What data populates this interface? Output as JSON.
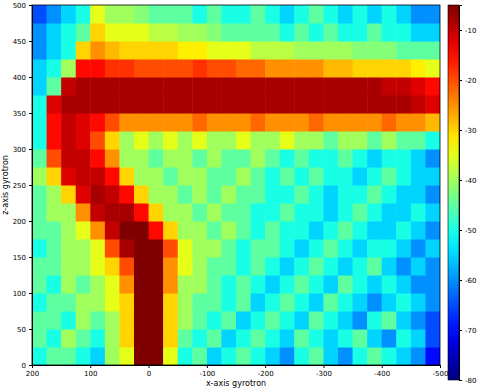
{
  "chart_data": {
    "type": "heatmap",
    "x_label": "x-axis gyrotron",
    "y_label": "z-axis gyrotron",
    "x": [
      187.5,
      162.5,
      137.5,
      112.5,
      87.5,
      62.5,
      37.5,
      12.5,
      -12.5,
      -37.5,
      -62.5,
      -87.5,
      -112.5,
      -137.5,
      -162.5,
      -187.5,
      -212.5,
      -237.5,
      -262.5,
      -287.5,
      -312.5,
      -337.5,
      -362.5,
      -387.5,
      -412.5,
      -437.5,
      -462.5,
      -487.5
    ],
    "y": [
      12.5,
      37.5,
      62.5,
      87.5,
      112.5,
      137.5,
      162.5,
      187.5,
      212.5,
      237.5,
      262.5,
      287.5,
      312.5,
      337.5,
      362.5,
      387.5,
      412.5,
      437.5,
      462.5,
      487.5
    ],
    "values": [
      [
        -50,
        -45,
        -45,
        -50,
        -55,
        -40,
        -35,
        -5,
        -5,
        -35,
        -50,
        -45,
        -55,
        -50,
        -45,
        -50,
        -55,
        -60,
        -50,
        -45,
        -55,
        -60,
        -50,
        -45,
        -50,
        -55,
        -60,
        -70
      ],
      [
        -45,
        -50,
        -40,
        -45,
        -50,
        -40,
        -30,
        -5,
        -5,
        -30,
        -45,
        -50,
        -45,
        -55,
        -50,
        -45,
        -50,
        -55,
        -45,
        -50,
        -55,
        -50,
        -45,
        -55,
        -60,
        -50,
        -55,
        -65
      ],
      [
        -45,
        -45,
        -50,
        -40,
        -45,
        -40,
        -30,
        -5,
        -5,
        -30,
        -40,
        -45,
        -50,
        -45,
        -55,
        -50,
        -45,
        -50,
        -55,
        -45,
        -50,
        -55,
        -60,
        -50,
        -45,
        -55,
        -60,
        -65
      ],
      [
        -50,
        -45,
        -45,
        -40,
        -40,
        -35,
        -30,
        -5,
        -5,
        -30,
        -40,
        -45,
        -45,
        -50,
        -45,
        -55,
        -50,
        -45,
        -50,
        -55,
        -45,
        -50,
        -55,
        -60,
        -55,
        -50,
        -55,
        -60
      ],
      [
        -45,
        -50,
        -40,
        -45,
        -40,
        -35,
        -25,
        -5,
        -5,
        -25,
        -40,
        -40,
        -45,
        -50,
        -45,
        -50,
        -55,
        -50,
        -45,
        -50,
        -55,
        -45,
        -50,
        -55,
        -50,
        -55,
        -60,
        -60
      ],
      [
        -45,
        -45,
        -40,
        -40,
        -35,
        -30,
        -20,
        -5,
        -5,
        -25,
        -35,
        -40,
        -45,
        -45,
        -50,
        -45,
        -50,
        -55,
        -50,
        -45,
        -50,
        -55,
        -50,
        -45,
        -55,
        -60,
        -55,
        -60
      ],
      [
        -50,
        -45,
        -40,
        -40,
        -35,
        -20,
        -8,
        -5,
        -5,
        -20,
        -35,
        -40,
        -40,
        -45,
        -50,
        -45,
        -45,
        -50,
        -55,
        -50,
        -45,
        -50,
        -55,
        -50,
        -50,
        -55,
        -60,
        -55
      ],
      [
        -45,
        -45,
        -40,
        -35,
        -25,
        -10,
        -5,
        -5,
        -15,
        -30,
        -40,
        -40,
        -45,
        -40,
        -45,
        -50,
        -45,
        -50,
        -50,
        -55,
        -50,
        -45,
        -50,
        -55,
        -55,
        -50,
        -55,
        -60
      ],
      [
        -45,
        -40,
        -40,
        -25,
        -10,
        -8,
        -8,
        -15,
        -30,
        -40,
        -40,
        -45,
        -40,
        -45,
        -45,
        -50,
        -50,
        -45,
        -50,
        -50,
        -55,
        -50,
        -45,
        -50,
        -55,
        -55,
        -50,
        -55
      ],
      [
        -45,
        -40,
        -30,
        -12,
        -8,
        -10,
        -15,
        -30,
        -40,
        -40,
        -45,
        -40,
        -45,
        -40,
        -45,
        -45,
        -50,
        -50,
        -45,
        -50,
        -55,
        -50,
        -50,
        -45,
        -50,
        -55,
        -55,
        -60
      ],
      [
        -40,
        -30,
        -12,
        -10,
        -10,
        -15,
        -30,
        -40,
        -40,
        -45,
        -40,
        -40,
        -45,
        -45,
        -40,
        -45,
        -50,
        -45,
        -50,
        -45,
        -50,
        -50,
        -55,
        -50,
        -45,
        -50,
        -55,
        -55
      ],
      [
        -45,
        -20,
        -10,
        -10,
        -15,
        -25,
        -40,
        -40,
        -45,
        -40,
        -40,
        -45,
        -40,
        -45,
        -45,
        -40,
        -45,
        -50,
        -45,
        -50,
        -50,
        -45,
        -50,
        -55,
        -50,
        -50,
        -55,
        -60
      ],
      [
        -50,
        -15,
        -10,
        -12,
        -20,
        -30,
        -40,
        -35,
        -40,
        -35,
        -40,
        -35,
        -40,
        -40,
        -35,
        -40,
        -40,
        -35,
        -40,
        -40,
        -45,
        -40,
        -40,
        -45,
        -40,
        -45,
        -45,
        -50
      ],
      [
        -50,
        -15,
        -10,
        -12,
        -15,
        -20,
        -25,
        -25,
        -25,
        -25,
        -25,
        -22,
        -25,
        -25,
        -25,
        -22,
        -25,
        -25,
        -25,
        -22,
        -25,
        -25,
        -25,
        -25,
        -22,
        -25,
        -25,
        -28
      ],
      [
        -50,
        -12,
        -8,
        -8,
        -8,
        -8,
        -8,
        -8,
        -8,
        -8,
        -8,
        -8,
        -8,
        -8,
        -8,
        -8,
        -8,
        -8,
        -8,
        -8,
        -8,
        -8,
        -8,
        -8,
        -8,
        -8,
        -10,
        -12
      ],
      [
        -55,
        -45,
        -10,
        -8,
        -8,
        -8,
        -8,
        -8,
        -8,
        -8,
        -8,
        -8,
        -8,
        -8,
        -8,
        -8,
        -8,
        -8,
        -8,
        -8,
        -8,
        -8,
        -8,
        -8,
        -10,
        -10,
        -12,
        -15
      ],
      [
        -55,
        -50,
        -40,
        -15,
        -15,
        -18,
        -18,
        -20,
        -20,
        -20,
        -20,
        -18,
        -20,
        -20,
        -22,
        -22,
        -25,
        -25,
        -25,
        -25,
        -28,
        -28,
        -30,
        -30,
        -30,
        -30,
        -32,
        -35
      ],
      [
        -60,
        -55,
        -50,
        -30,
        -25,
        -28,
        -30,
        -30,
        -30,
        -30,
        -32,
        -32,
        -35,
        -35,
        -35,
        -38,
        -38,
        -38,
        -40,
        -40,
        -40,
        -40,
        -42,
        -42,
        -42,
        -45,
        -45,
        -45
      ],
      [
        -60,
        -55,
        -50,
        -45,
        -30,
        -35,
        -35,
        -35,
        -38,
        -38,
        -40,
        -40,
        -42,
        -45,
        -45,
        -45,
        -45,
        -50,
        -45,
        -50,
        -45,
        -50,
        -50,
        -45,
        -50,
        -50,
        -55,
        -55
      ],
      [
        -65,
        -60,
        -55,
        -50,
        -35,
        -40,
        -40,
        -42,
        -45,
        -45,
        -45,
        -50,
        -45,
        -50,
        -50,
        -45,
        -50,
        -55,
        -50,
        -45,
        -50,
        -55,
        -50,
        -55,
        -50,
        -55,
        -60,
        -60
      ]
    ],
    "xlim": [
      200,
      -500
    ],
    "xticks": [
      200,
      100,
      0,
      -100,
      -200,
      -300,
      -400,
      -500
    ],
    "ylim": [
      0,
      500
    ],
    "yticks": [
      0,
      50,
      100,
      150,
      200,
      250,
      300,
      350,
      400,
      450,
      500
    ],
    "colorbar": {
      "range": [
        -80,
        -5
      ],
      "ticks": [
        -10,
        -20,
        -30,
        -40,
        -50,
        -60,
        -70,
        -80
      ]
    }
  }
}
